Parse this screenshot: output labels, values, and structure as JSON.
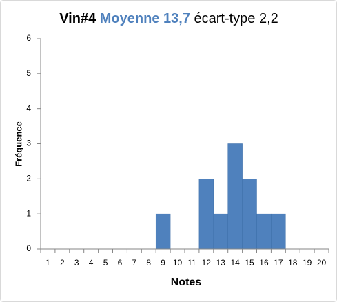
{
  "chart_data": {
    "type": "bar",
    "title_parts": [
      "Vin#4",
      "Moyenne 13,7",
      "écart-type 2,2"
    ],
    "title_colors": [
      "#000000",
      "#4f81bd",
      "#000000"
    ],
    "xlabel": "Notes",
    "ylabel": "Fréquence",
    "categories": [
      "1",
      "2",
      "3",
      "4",
      "5",
      "6",
      "7",
      "8",
      "9",
      "10",
      "11",
      "12",
      "13",
      "14",
      "15",
      "16",
      "17",
      "18",
      "19",
      "20"
    ],
    "values": [
      0,
      0,
      0,
      0,
      0,
      0,
      0,
      0,
      1,
      0,
      0,
      2,
      1,
      3,
      2,
      1,
      1,
      0,
      0,
      0
    ],
    "color": "#4f81bd",
    "ylim": [
      0,
      6
    ],
    "yticks": [
      0,
      1,
      2,
      3,
      4,
      5,
      6
    ],
    "grid": false
  }
}
